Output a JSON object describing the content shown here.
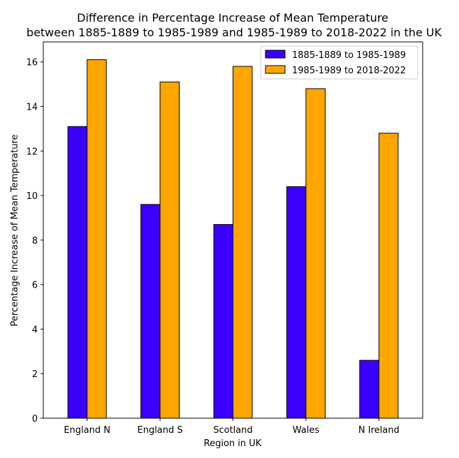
{
  "chart_data": {
    "type": "bar",
    "title_line1": "Difference in Percentage Increase of Mean Temperature",
    "title_line2": "between 1885-1889 to 1985-1989 and 1985-1989 to 2018-2022 in the UK",
    "xlabel": "Region in UK",
    "ylabel": "Percentage Increase of Mean Temperature",
    "categories": [
      "England N",
      "England S",
      "Scotland",
      "Wales",
      "N Ireland"
    ],
    "series": [
      {
        "name": "1885-1889 to 1985-1989",
        "color": "#3a00ff",
        "values": [
          13.1,
          9.6,
          8.7,
          10.4,
          2.6
        ]
      },
      {
        "name": "1985-1989 to 2018-2022",
        "color": "#ffa500",
        "values": [
          16.1,
          15.1,
          15.8,
          14.8,
          12.8
        ]
      }
    ],
    "ylim": [
      0,
      16.9
    ],
    "yticks": [
      0,
      2,
      4,
      6,
      8,
      10,
      12,
      14,
      16
    ],
    "grid": false,
    "legend_position": "top-right"
  }
}
